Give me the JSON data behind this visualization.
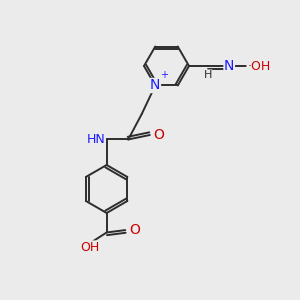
{
  "bg_color": "#ebebeb",
  "bond_color": "#2d2d2d",
  "N_color": "#1a1aff",
  "O_color": "#cc0000",
  "text_color": "#2d2d2d",
  "figsize": [
    3.0,
    3.0
  ],
  "dpi": 100,
  "xlim": [
    0,
    10
  ],
  "ylim": [
    0,
    10
  ]
}
